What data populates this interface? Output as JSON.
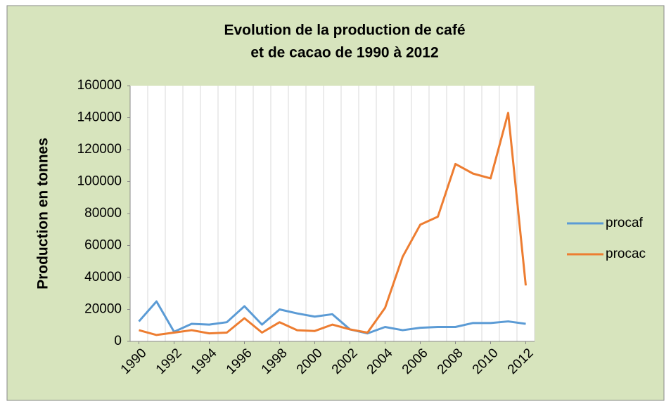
{
  "chart_data": {
    "type": "line",
    "title": [
      "Evolution de la production de café",
      "et  de cacao de 1990  à 2012"
    ],
    "y_label": "Production en tonnes",
    "x": [
      1990,
      1991,
      1992,
      1993,
      1994,
      1995,
      1996,
      1997,
      1998,
      1999,
      2000,
      2001,
      2002,
      2003,
      2004,
      2005,
      2006,
      2007,
      2008,
      2009,
      2010,
      2011,
      2012
    ],
    "xlim": [
      1989.5,
      2012.5
    ],
    "xticks": [
      1990,
      1992,
      1994,
      1996,
      1998,
      2000,
      2002,
      2004,
      2006,
      2008,
      2010,
      2012
    ],
    "ylim": [
      0,
      160000
    ],
    "yticks": [
      0,
      20000,
      40000,
      60000,
      80000,
      100000,
      120000,
      140000,
      160000
    ],
    "legend": "right",
    "series": [
      {
        "name": "procaf",
        "color": "#5b9bd5",
        "values": [
          12500,
          25000,
          6000,
          11000,
          10500,
          12000,
          22000,
          10500,
          20000,
          17500,
          15500,
          17000,
          7500,
          5000,
          9000,
          7000,
          8500,
          9000,
          9000,
          11500,
          11500,
          12500,
          11000
        ]
      },
      {
        "name": "procac",
        "color": "#ed7d31",
        "values": [
          7000,
          4000,
          5500,
          7000,
          5000,
          5500,
          14500,
          5500,
          12000,
          7000,
          6500,
          10500,
          7500,
          5500,
          21000,
          53000,
          73000,
          78000,
          111000,
          105000,
          102000,
          143000,
          35000
        ]
      }
    ]
  }
}
